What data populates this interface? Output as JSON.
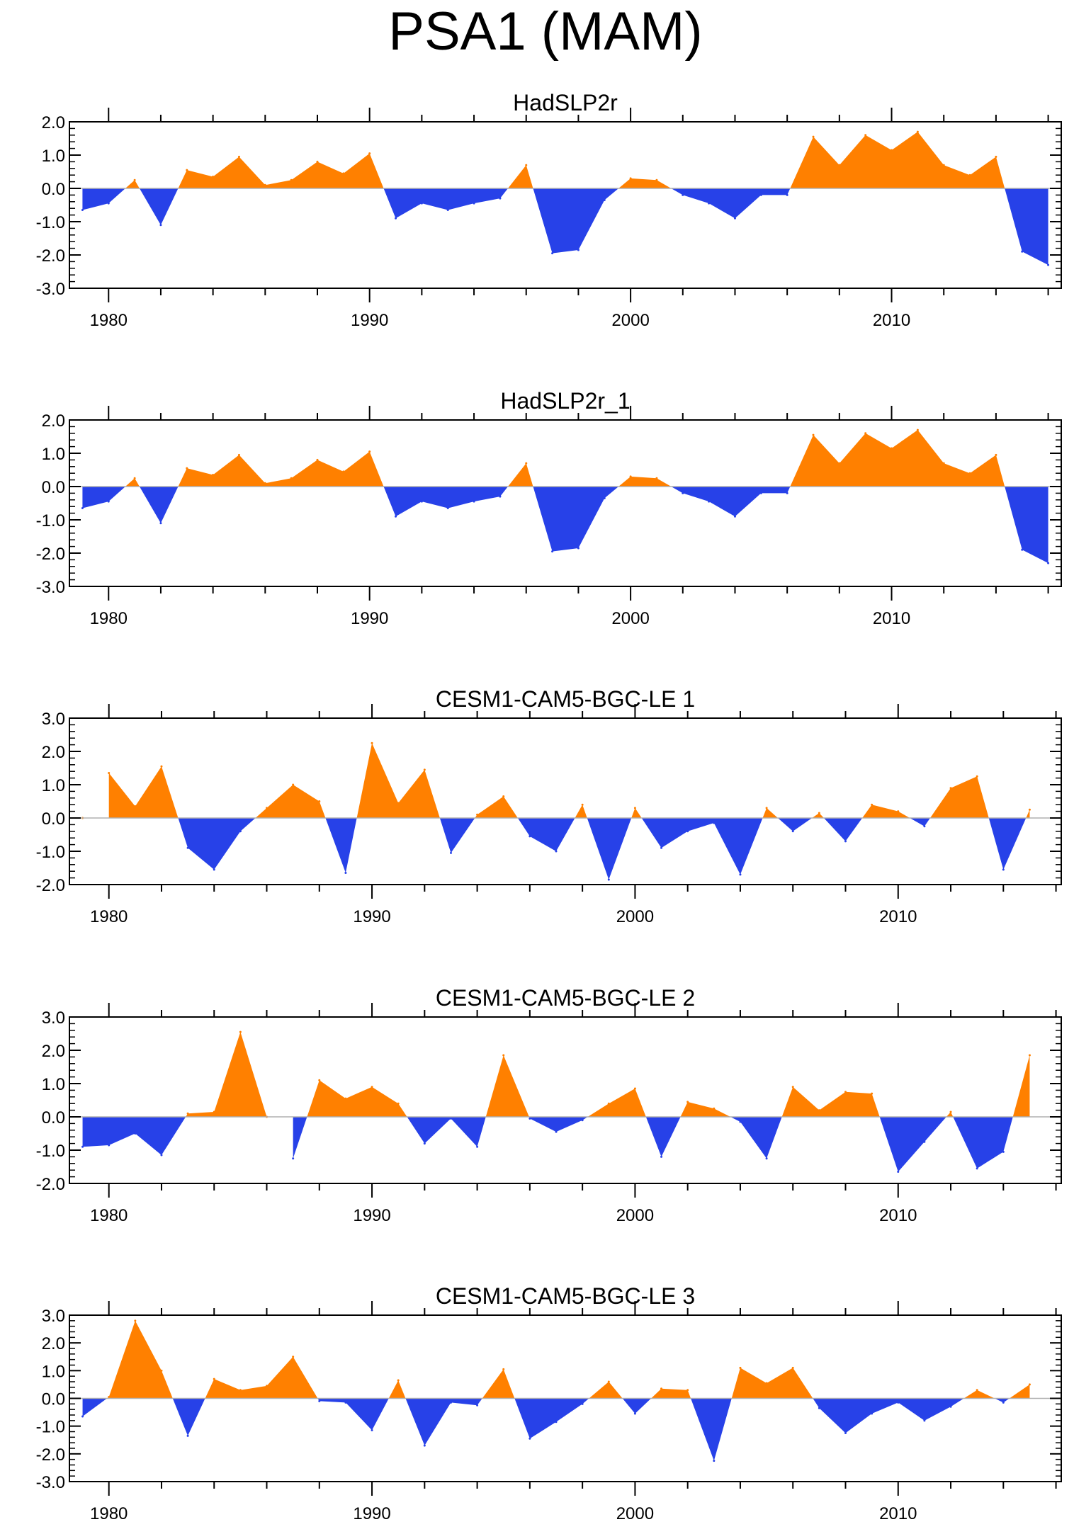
{
  "figure_title": "PSA1 (MAM)",
  "colors": {
    "positive": "#ff8000",
    "negative": "#2741e8",
    "axis": "#000000",
    "zero_line": "#b0b0b0"
  },
  "chart_data": [
    {
      "type": "area",
      "title": "HadSLP2r",
      "x_start": 1979,
      "xlim": [
        1978.5,
        2016.5
      ],
      "ylim": [
        -3.0,
        2.0
      ],
      "yticks": [
        -3.0,
        -2.0,
        -1.0,
        0.0,
        1.0,
        2.0
      ],
      "ytick_labels": [
        "-3.0",
        "-2.0",
        "-1.0",
        "0.0",
        "1.0",
        "2.0"
      ],
      "xticks": [
        1980,
        1990,
        2000,
        2010
      ],
      "xtick_labels": [
        "1980",
        "1990",
        "2000",
        "2010"
      ],
      "values": [
        -0.65,
        -0.45,
        0.25,
        -1.1,
        0.55,
        0.35,
        0.95,
        0.1,
        0.25,
        0.8,
        0.45,
        1.05,
        -0.9,
        -0.45,
        -0.65,
        -0.45,
        -0.3,
        0.7,
        -1.95,
        -1.85,
        -0.35,
        0.3,
        0.25,
        -0.2,
        -0.45,
        -0.9,
        -0.2,
        -0.2,
        1.55,
        0.7,
        1.6,
        1.15,
        1.7,
        0.7,
        0.4,
        0.95,
        -1.9,
        -2.3
      ]
    },
    {
      "type": "area",
      "title": "HadSLP2r_1",
      "x_start": 1979,
      "xlim": [
        1978.5,
        2016.5
      ],
      "ylim": [
        -3.0,
        2.0
      ],
      "yticks": [
        -3.0,
        -2.0,
        -1.0,
        0.0,
        1.0,
        2.0
      ],
      "ytick_labels": [
        "-3.0",
        "-2.0",
        "-1.0",
        "0.0",
        "1.0",
        "2.0"
      ],
      "xticks": [
        1980,
        1990,
        2000,
        2010
      ],
      "xtick_labels": [
        "1980",
        "1990",
        "2000",
        "2010"
      ],
      "values": [
        -0.65,
        -0.45,
        0.25,
        -1.1,
        0.55,
        0.35,
        0.95,
        0.1,
        0.25,
        0.8,
        0.45,
        1.05,
        -0.9,
        -0.45,
        -0.65,
        -0.45,
        -0.3,
        0.7,
        -1.95,
        -1.85,
        -0.35,
        0.3,
        0.25,
        -0.2,
        -0.45,
        -0.9,
        -0.2,
        -0.2,
        1.55,
        0.7,
        1.6,
        1.15,
        1.7,
        0.7,
        0.4,
        0.95,
        -1.9,
        -2.3
      ]
    },
    {
      "type": "area",
      "title": "CESM1-CAM5-BGC-LE 1",
      "x_start": 1979,
      "xlim": [
        1978.5,
        2016.2
      ],
      "ylim": [
        -2.0,
        3.0
      ],
      "yticks": [
        -2.0,
        -1.0,
        0.0,
        1.0,
        2.0,
        3.0
      ],
      "ytick_labels": [
        "-2.0",
        "-1.0",
        "0.0",
        "1.0",
        "2.0",
        "3.0"
      ],
      "xticks": [
        1980,
        1990,
        2000,
        2010
      ],
      "xtick_labels": [
        "1980",
        "1990",
        "2000",
        "2010"
      ],
      "values": [
        0.0,
        1.35,
        0.35,
        1.55,
        -0.9,
        -1.55,
        -0.4,
        0.3,
        1.0,
        0.5,
        -1.65,
        2.25,
        0.45,
        1.45,
        -1.05,
        0.1,
        0.65,
        -0.55,
        -1.0,
        0.4,
        -1.85,
        0.3,
        -0.9,
        -0.4,
        -0.15,
        -1.7,
        0.3,
        -0.4,
        0.15,
        -0.7,
        0.4,
        0.2,
        -0.25,
        0.9,
        1.25,
        -1.55,
        0.25
      ]
    },
    {
      "type": "area",
      "title": "CESM1-CAM5-BGC-LE 2",
      "x_start": 1979,
      "xlim": [
        1978.5,
        2016.2
      ],
      "ylim": [
        -2.0,
        3.0
      ],
      "yticks": [
        -2.0,
        -1.0,
        0.0,
        1.0,
        2.0,
        3.0
      ],
      "ytick_labels": [
        "-2.0",
        "-1.0",
        "0.0",
        "1.0",
        "2.0",
        "3.0"
      ],
      "xticks": [
        1980,
        1990,
        2000,
        2010
      ],
      "xtick_labels": [
        "1980",
        "1990",
        "2000",
        "2010"
      ],
      "values": [
        -0.9,
        -0.85,
        -0.5,
        -1.15,
        0.1,
        0.15,
        2.55,
        0.0,
        -1.25,
        1.1,
        0.55,
        0.9,
        0.4,
        -0.8,
        -0.05,
        -0.9,
        1.85,
        -0.05,
        -0.45,
        -0.1,
        0.4,
        0.85,
        -1.2,
        0.45,
        0.25,
        -0.15,
        -1.25,
        0.9,
        0.2,
        0.75,
        0.7,
        -1.65,
        -0.75,
        0.15,
        -1.55,
        -1.05,
        1.85
      ]
    },
    {
      "type": "area",
      "title": "CESM1-CAM5-BGC-LE 3",
      "x_start": 1979,
      "xlim": [
        1978.5,
        2016.2
      ],
      "ylim": [
        -3.0,
        3.0
      ],
      "yticks": [
        -3.0,
        -2.0,
        -1.0,
        0.0,
        1.0,
        2.0,
        3.0
      ],
      "ytick_labels": [
        "-3.0",
        "-2.0",
        "-1.0",
        "0.0",
        "1.0",
        "2.0",
        "3.0"
      ],
      "xticks": [
        1980,
        1990,
        2000,
        2010
      ],
      "xtick_labels": [
        "1980",
        "1990",
        "2000",
        "2010"
      ],
      "values": [
        -0.65,
        0.05,
        2.8,
        1.0,
        -1.35,
        0.7,
        0.3,
        0.45,
        1.5,
        -0.1,
        -0.15,
        -1.15,
        0.65,
        -1.7,
        -0.15,
        -0.25,
        1.05,
        -1.45,
        -0.85,
        -0.2,
        0.6,
        -0.55,
        0.35,
        0.3,
        -2.25,
        1.1,
        0.55,
        1.1,
        -0.35,
        -1.25,
        -0.55,
        -0.15,
        -0.8,
        -0.3,
        0.3,
        -0.15,
        0.5
      ]
    }
  ]
}
